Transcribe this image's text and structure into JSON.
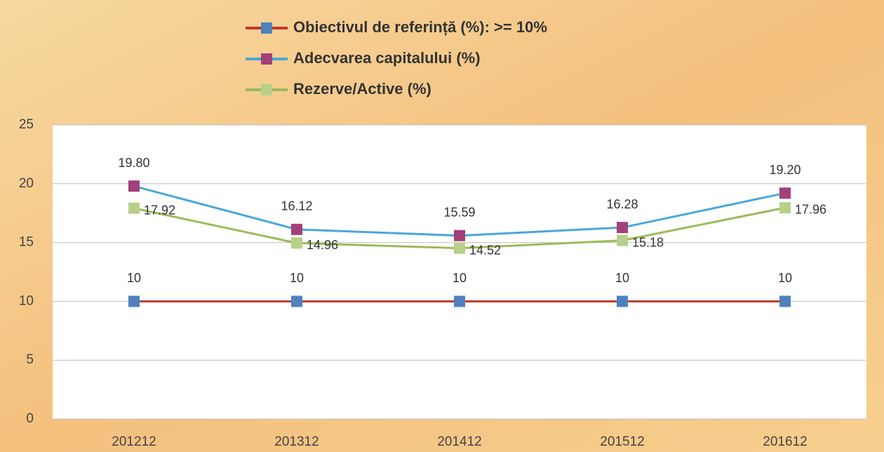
{
  "chart_data": {
    "type": "line",
    "categories": [
      "201212",
      "201312",
      "201412",
      "201512",
      "201612"
    ],
    "series": [
      {
        "name": "Obiectivul de referință (%): >= 10%",
        "color": "#c0392b",
        "marker_color": "#4f81bd",
        "values": [
          10,
          10,
          10,
          10,
          10
        ]
      },
      {
        "name": "Adecvarea capitalului (%)",
        "color": "#4aa8d8",
        "marker_color": "#a3407a",
        "values": [
          19.8,
          16.12,
          15.59,
          16.28,
          19.2
        ],
        "value_labels": [
          "19.80",
          "16.12",
          "15.59",
          "16.28",
          "19.20"
        ]
      },
      {
        "name": "Rezerve/Active (%)",
        "color": "#9bbb59",
        "marker_color": "#b8d08a",
        "values": [
          17.92,
          14.96,
          14.52,
          15.18,
          17.96
        ]
      }
    ],
    "ylim": [
      0,
      25
    ],
    "yticks": [
      0,
      5,
      10,
      15,
      20,
      25
    ],
    "grid": true
  }
}
